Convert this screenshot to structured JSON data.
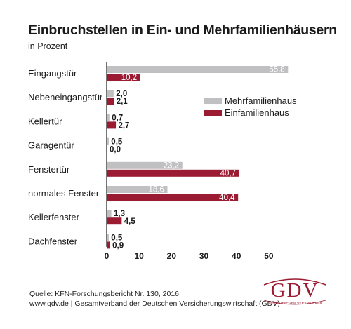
{
  "title": "Einbruchstellen in Ein- und Mehrfamilienhäusern",
  "subtitle": "in Prozent",
  "source_line1": "Quelle: KFN-Forschungsbericht Nr. 130,  2016",
  "source_line2": "www.gdv.de | Gesamtverband der Deutschen Versicherungswirtschaft (GDV)",
  "logo": {
    "text": "GDV",
    "subtext": "DIE DEUTSCHEN VERSICHERER",
    "color": "#9b1b33"
  },
  "chart_data": {
    "type": "bar",
    "orientation": "horizontal",
    "categories": [
      "Eingangstür",
      "Nebeneingangstür",
      "Kellertür",
      "Garagentür",
      "Fenstertür",
      "normales Fenster",
      "Kellerfenster",
      "Dachfenster"
    ],
    "series": [
      {
        "name": "Mehrfamilienhaus",
        "color": "#c0c0c2",
        "values": [
          55.8,
          2.0,
          0.7,
          0.5,
          23.2,
          18.6,
          1.3,
          0.5
        ],
        "labels": [
          "55,8",
          "2,0",
          "0,7",
          "0,5",
          "23,2",
          "18,6",
          "1,3",
          "0,5"
        ]
      },
      {
        "name": "Einfamilienhaus",
        "color": "#9b1b33",
        "values": [
          10.2,
          2.1,
          2.7,
          0.0,
          40.7,
          40.4,
          4.5,
          0.9
        ],
        "labels": [
          "10,2",
          "2,1",
          "2,7",
          "0,0",
          "40,7",
          "40,4",
          "4,5",
          "0,9"
        ]
      }
    ],
    "xlim": [
      0,
      55
    ],
    "xticks": [
      0,
      10,
      20,
      30,
      40,
      50
    ],
    "legend": "right",
    "grid": false
  }
}
